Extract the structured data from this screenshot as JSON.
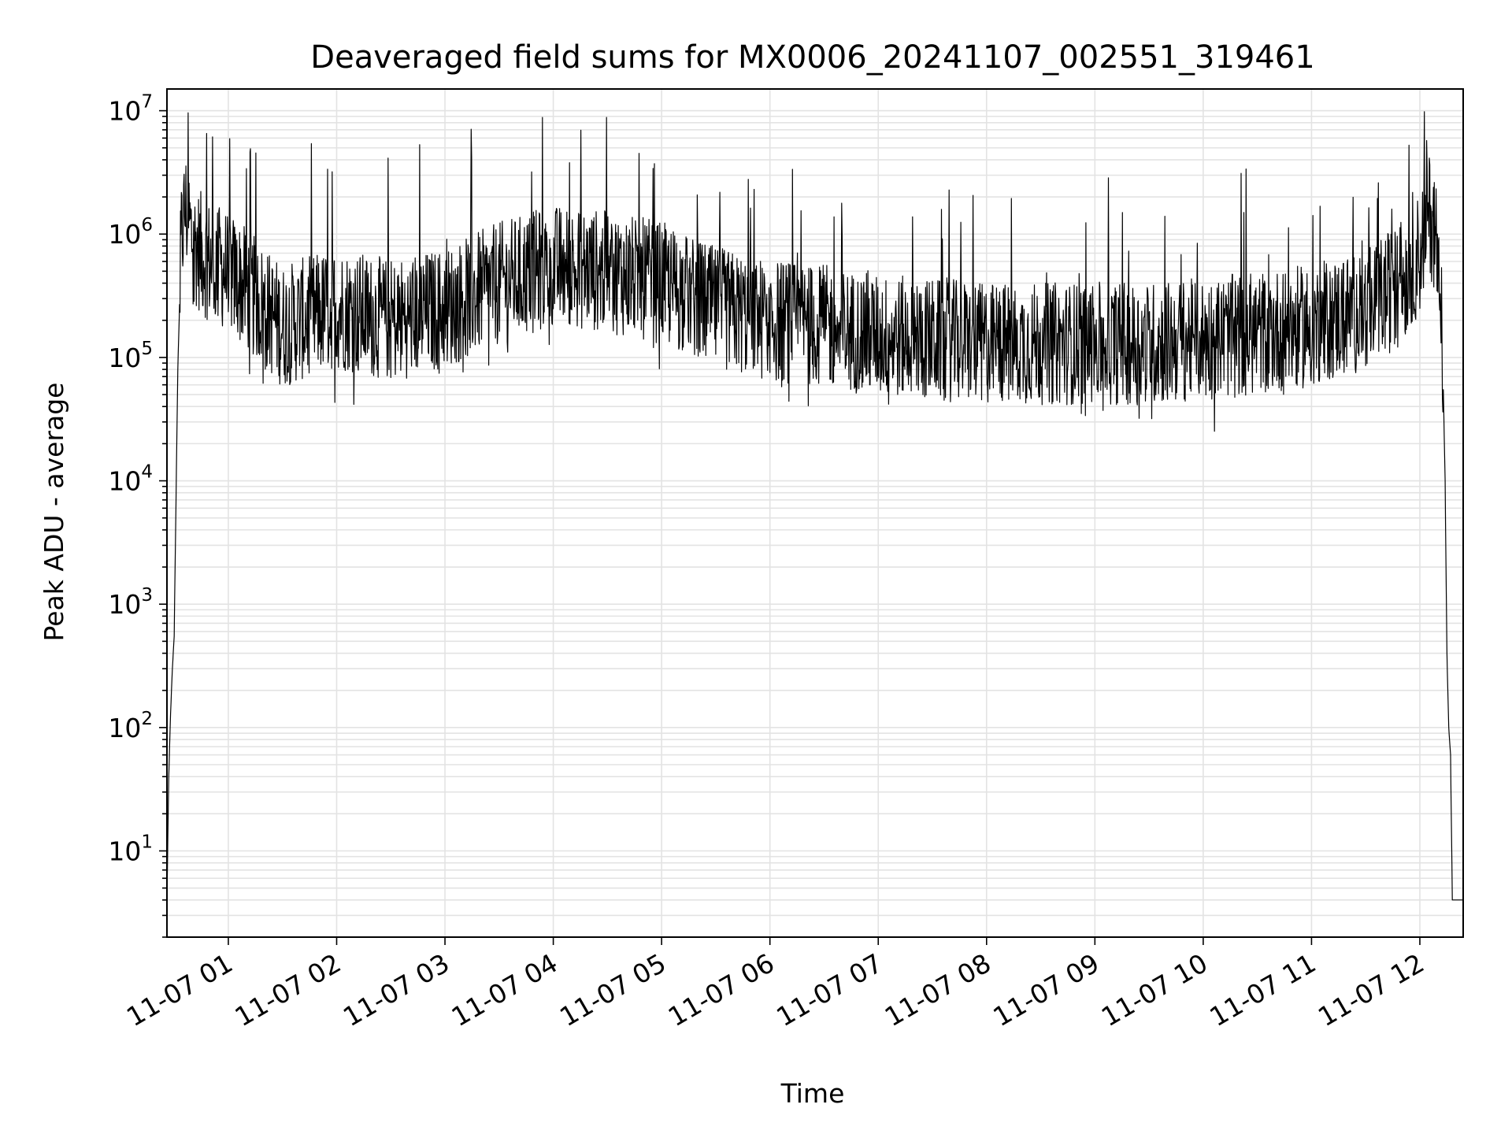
{
  "chart_data": {
    "type": "line",
    "title": "Deaveraged field sums for MX0006_20241107_002551_319461",
    "xlabel": "Time",
    "ylabel": "Peak ADU - average",
    "yscale": "log",
    "ylim": [
      2,
      15000000
    ],
    "xlim": [
      "2024-11-07 00:26",
      "2024-11-07 12:24"
    ],
    "x_tick_labels": [
      "11-07 01",
      "11-07 02",
      "11-07 03",
      "11-07 04",
      "11-07 05",
      "11-07 06",
      "11-07 07",
      "11-07 08",
      "11-07 09",
      "11-07 10",
      "11-07 11",
      "11-07 12"
    ],
    "y_ticks": [
      {
        "base": "10",
        "exp": "1",
        "value": 10
      },
      {
        "base": "10",
        "exp": "2",
        "value": 100
      },
      {
        "base": "10",
        "exp": "3",
        "value": 1000
      },
      {
        "base": "10",
        "exp": "4",
        "value": 10000
      },
      {
        "base": "10",
        "exp": "5",
        "value": 100000
      },
      {
        "base": "10",
        "exp": "6",
        "value": 1000000
      },
      {
        "base": "10",
        "exp": "7",
        "value": 10000000
      }
    ],
    "grid": true,
    "series_color": "#000000",
    "series": [
      {
        "x": [
          "2024-11-07 00:26",
          "2024-11-07 00:27",
          "2024-11-07 00:28",
          "2024-11-07 00:29",
          "2024-11-07 00:30",
          "2024-11-07 00:32",
          "2024-11-07 00:34",
          "2024-11-07 00:36",
          "2024-11-07 00:38",
          "2024-11-07 00:40",
          "2024-11-07 00:42",
          "2024-11-07 00:45",
          "2024-11-07 00:50",
          "2024-11-07 01:00",
          "2024-11-07 01:30",
          "2024-11-07 02:00",
          "2024-11-07 02:30",
          "2024-11-07 03:00",
          "2024-11-07 03:30",
          "2024-11-07 04:00",
          "2024-11-07 04:30",
          "2024-11-07 05:00",
          "2024-11-07 05:30",
          "2024-11-07 06:00",
          "2024-11-07 06:30",
          "2024-11-07 07:00",
          "2024-11-07 07:30",
          "2024-11-07 08:00",
          "2024-11-07 08:30",
          "2024-11-07 09:00",
          "2024-11-07 09:30",
          "2024-11-07 10:00",
          "2024-11-07 10:30",
          "2024-11-07 11:00",
          "2024-11-07 11:30",
          "2024-11-07 11:50",
          "2024-11-07 12:00",
          "2024-11-07 12:05",
          "2024-11-07 12:10",
          "2024-11-07 12:12",
          "2024-11-07 12:14",
          "2024-11-07 12:15",
          "2024-11-07 12:16",
          "2024-11-07 12:17",
          "2024-11-07 12:18",
          "2024-11-07 12:24"
        ],
        "values": [
          4,
          40,
          130,
          300,
          550,
          80000,
          900000,
          1600000,
          1300000,
          900000,
          800000,
          700000,
          600000,
          500000,
          180000,
          250000,
          200000,
          250000,
          400000,
          550000,
          500000,
          400000,
          250000,
          200000,
          180000,
          150000,
          140000,
          130000,
          130000,
          130000,
          130000,
          140000,
          160000,
          180000,
          250000,
          400000,
          700000,
          1500000,
          900000,
          300000,
          10000,
          400,
          100,
          60,
          4,
          4
        ]
      }
    ]
  }
}
